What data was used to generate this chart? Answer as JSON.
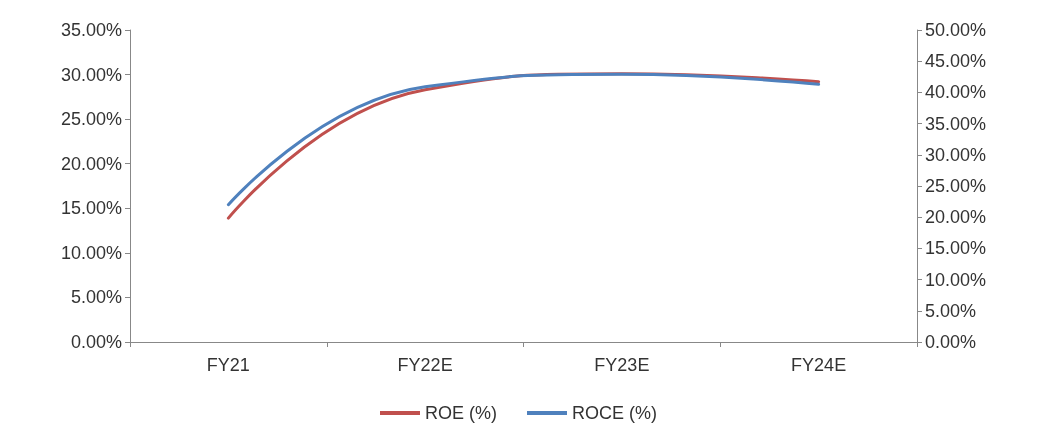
{
  "chart_data": {
    "type": "line",
    "categories": [
      "FY21",
      "FY22E",
      "FY23E",
      "FY24E"
    ],
    "series": [
      {
        "name": "ROE (%)",
        "color": "#c0504d",
        "values": [
          13.9,
          28.3,
          30.1,
          29.2
        ]
      },
      {
        "name": "ROCE (%)",
        "color": "#4f81bd",
        "values": [
          22.0,
          40.9,
          42.9,
          41.3
        ],
        "axis": "y2"
      }
    ],
    "ylim": [
      0,
      35
    ],
    "yticks": [
      {
        "value": 0,
        "label": "0.00%"
      },
      {
        "value": 5,
        "label": "5.00%"
      },
      {
        "value": 10,
        "label": "10.00%"
      },
      {
        "value": 15,
        "label": "15.00%"
      },
      {
        "value": 20,
        "label": "20.00%"
      },
      {
        "value": 25,
        "label": "25.00%"
      },
      {
        "value": 30,
        "label": "30.00%"
      },
      {
        "value": 35,
        "label": "35.00%"
      }
    ],
    "y2lim": [
      0,
      50
    ],
    "y2ticks": [
      {
        "value": 0,
        "label": "0.00%"
      },
      {
        "value": 5,
        "label": "5.00%"
      },
      {
        "value": 10,
        "label": "10.00%"
      },
      {
        "value": 15,
        "label": "15.00%"
      },
      {
        "value": 20,
        "label": "20.00%"
      },
      {
        "value": 25,
        "label": "25.00%"
      },
      {
        "value": 30,
        "label": "30.00%"
      },
      {
        "value": 35,
        "label": "35.00%"
      },
      {
        "value": 40,
        "label": "40.00%"
      },
      {
        "value": 45,
        "label": "45.00%"
      },
      {
        "value": 50,
        "label": "50.00%"
      }
    ],
    "grid": false,
    "legend": "bottom",
    "marker": "none",
    "line_style": "solid"
  }
}
